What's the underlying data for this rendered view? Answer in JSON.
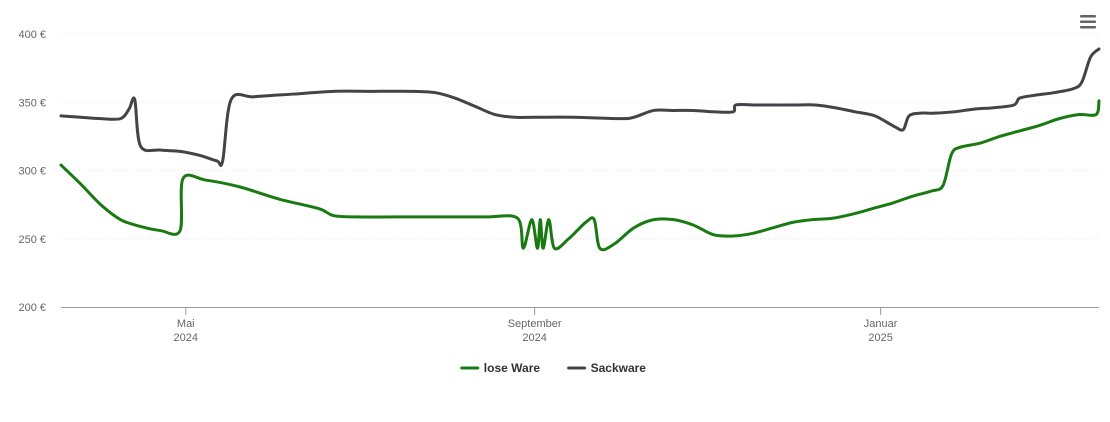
{
  "chart_data": {
    "type": "line",
    "title": "",
    "xlabel": "",
    "ylabel": "",
    "ylim": [
      200,
      400
    ],
    "y_ticks": [
      200,
      250,
      300,
      350,
      400
    ],
    "y_tick_format": "{v} €",
    "grid": "horizontal dotted",
    "legend_placement": "bottom-center",
    "x_ticks": [
      {
        "date": "2024-05-01",
        "line1": "Mai",
        "line2": "2024"
      },
      {
        "date": "2024-09-01",
        "line1": "September",
        "line2": "2024"
      },
      {
        "date": "2025-01-01",
        "line1": "Januar",
        "line2": "2025"
      }
    ],
    "x_range": [
      "2024-03-18",
      "2025-03-19"
    ],
    "series": [
      {
        "name": "lose Ware",
        "color": "#1a7a12",
        "points": [
          [
            "2024-03-18",
            304
          ],
          [
            "2024-03-25",
            290
          ],
          [
            "2024-04-01",
            275
          ],
          [
            "2024-04-08",
            264
          ],
          [
            "2024-04-15",
            259
          ],
          [
            "2024-04-22",
            256
          ],
          [
            "2024-04-29",
            256
          ],
          [
            "2024-04-30",
            294
          ],
          [
            "2024-05-08",
            293
          ],
          [
            "2024-05-20",
            288
          ],
          [
            "2024-06-03",
            279
          ],
          [
            "2024-06-17",
            272
          ],
          [
            "2024-06-22",
            267
          ],
          [
            "2024-06-30",
            266
          ],
          [
            "2024-07-15",
            266
          ],
          [
            "2024-08-01",
            266
          ],
          [
            "2024-08-15",
            266
          ],
          [
            "2024-08-26",
            265
          ],
          [
            "2024-08-28",
            243
          ],
          [
            "2024-08-31",
            264
          ],
          [
            "2024-09-02",
            243
          ],
          [
            "2024-09-03",
            264
          ],
          [
            "2024-09-04",
            243
          ],
          [
            "2024-09-06",
            264
          ],
          [
            "2024-09-08",
            243
          ],
          [
            "2024-09-13",
            250
          ],
          [
            "2024-09-19",
            262
          ],
          [
            "2024-09-22",
            264
          ],
          [
            "2024-09-24",
            243
          ],
          [
            "2024-09-29",
            246
          ],
          [
            "2024-10-06",
            258
          ],
          [
            "2024-10-13",
            264
          ],
          [
            "2024-10-20",
            264
          ],
          [
            "2024-10-27",
            260
          ],
          [
            "2024-11-03",
            253
          ],
          [
            "2024-11-10",
            252
          ],
          [
            "2024-11-17",
            254
          ],
          [
            "2024-11-24",
            258
          ],
          [
            "2024-12-01",
            262
          ],
          [
            "2024-12-08",
            264
          ],
          [
            "2024-12-15",
            265
          ],
          [
            "2024-12-22",
            268
          ],
          [
            "2024-12-29",
            272
          ],
          [
            "2025-01-05",
            276
          ],
          [
            "2025-01-12",
            281
          ],
          [
            "2025-01-19",
            285
          ],
          [
            "2025-01-23",
            289
          ],
          [
            "2025-01-26",
            312
          ],
          [
            "2025-01-29",
            317
          ],
          [
            "2025-02-05",
            320
          ],
          [
            "2025-02-12",
            325
          ],
          [
            "2025-02-19",
            329
          ],
          [
            "2025-02-26",
            333
          ],
          [
            "2025-03-05",
            338
          ],
          [
            "2025-03-12",
            341
          ],
          [
            "2025-03-18",
            341
          ],
          [
            "2025-03-19",
            351
          ]
        ]
      },
      {
        "name": "Sackware",
        "color": "#434348",
        "points": [
          [
            "2024-03-18",
            340
          ],
          [
            "2024-03-25",
            339
          ],
          [
            "2024-04-01",
            338
          ],
          [
            "2024-04-08",
            338
          ],
          [
            "2024-04-11",
            345
          ],
          [
            "2024-04-13",
            352
          ],
          [
            "2024-04-15",
            318
          ],
          [
            "2024-04-22",
            315
          ],
          [
            "2024-04-29",
            314
          ],
          [
            "2024-05-06",
            311
          ],
          [
            "2024-05-12",
            307
          ],
          [
            "2024-05-14",
            307
          ],
          [
            "2024-05-17",
            352
          ],
          [
            "2024-05-25",
            354
          ],
          [
            "2024-06-08",
            356
          ],
          [
            "2024-06-22",
            358
          ],
          [
            "2024-07-06",
            358
          ],
          [
            "2024-07-20",
            358
          ],
          [
            "2024-07-28",
            357
          ],
          [
            "2024-08-04",
            353
          ],
          [
            "2024-08-11",
            347
          ],
          [
            "2024-08-18",
            341
          ],
          [
            "2024-08-25",
            339
          ],
          [
            "2024-09-01",
            339
          ],
          [
            "2024-09-15",
            339
          ],
          [
            "2024-10-01",
            338
          ],
          [
            "2024-10-06",
            339
          ],
          [
            "2024-10-13",
            344
          ],
          [
            "2024-10-20",
            344
          ],
          [
            "2024-10-27",
            344
          ],
          [
            "2024-11-03",
            343
          ],
          [
            "2024-11-10",
            343
          ],
          [
            "2024-11-11",
            348
          ],
          [
            "2024-11-18",
            348
          ],
          [
            "2024-11-25",
            348
          ],
          [
            "2024-12-02",
            348
          ],
          [
            "2024-12-09",
            348
          ],
          [
            "2024-12-16",
            346
          ],
          [
            "2024-12-23",
            343
          ],
          [
            "2024-12-30",
            340
          ],
          [
            "2025-01-06",
            332
          ],
          [
            "2025-01-09",
            330
          ],
          [
            "2025-01-11",
            340
          ],
          [
            "2025-01-15",
            342
          ],
          [
            "2025-01-20",
            342
          ],
          [
            "2025-01-27",
            343
          ],
          [
            "2025-02-03",
            345
          ],
          [
            "2025-02-10",
            346
          ],
          [
            "2025-02-17",
            348
          ],
          [
            "2025-02-19",
            353
          ],
          [
            "2025-02-24",
            355
          ],
          [
            "2025-03-03",
            357
          ],
          [
            "2025-03-10",
            360
          ],
          [
            "2025-03-13",
            365
          ],
          [
            "2025-03-16",
            383
          ],
          [
            "2025-03-19",
            389
          ]
        ]
      }
    ]
  },
  "menu": {
    "icon": "hamburger-menu-icon"
  }
}
